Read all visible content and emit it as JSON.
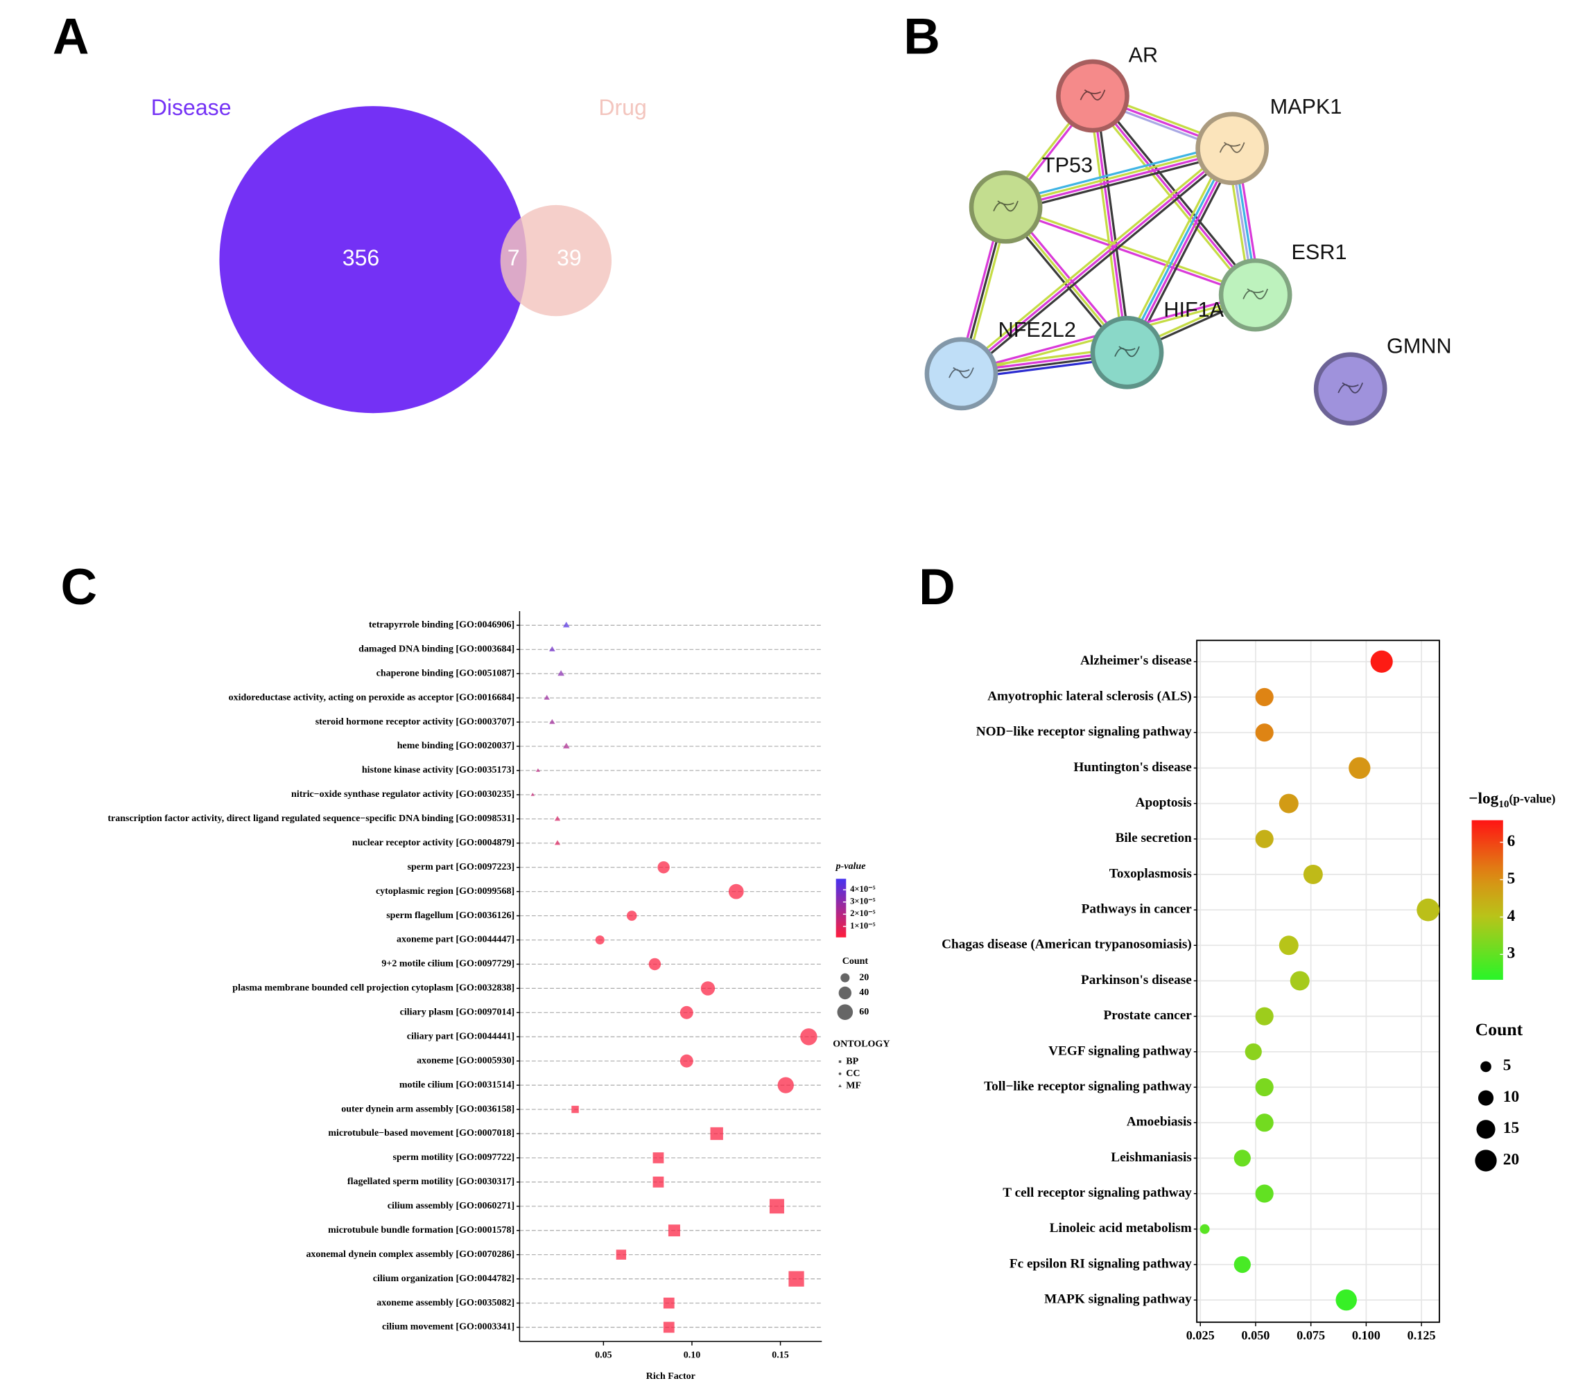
{
  "chart_data": [
    {
      "type": "venn",
      "label": "A",
      "sets": [
        {
          "name": "Disease",
          "color": "#7431f5"
        },
        {
          "name": "Drug",
          "color": "#f3c5be"
        }
      ],
      "values": [
        356,
        7,
        39
      ]
    },
    {
      "type": "network",
      "label": "B",
      "nodes": [
        {
          "name": "AR",
          "color": "#f58a8a"
        },
        {
          "name": "MAPK1",
          "color": "#fbe4bb"
        },
        {
          "name": "TP53",
          "color": "#c3dd8f"
        },
        {
          "name": "ESR1",
          "color": "#bdf2bd"
        },
        {
          "name": "HIF1A",
          "color": "#8ad8c8"
        },
        {
          "name": "NFE2L2",
          "color": "#bfdef7"
        },
        {
          "name": "GMNN",
          "color": "#9f92dc"
        }
      ]
    },
    {
      "type": "dot",
      "label": "C",
      "xlabel": "Rich Factor",
      "categories": [
        "tetrapyrrole binding [GO:0046906]",
        "damaged DNA binding [GO:0003684]",
        "chaperone binding [GO:0051087]",
        "oxidoreductase activity, acting on peroxide as acceptor [GO:0016684]",
        "steroid hormone receptor activity [GO:0003707]",
        "heme binding [GO:0020037]",
        "histone kinase activity [GO:0035173]",
        "nitric−oxide synthase regulator activity [GO:0030235]",
        "transcription factor activity, direct ligand regulated sequence−specific DNA binding [GO:0098531]",
        "nuclear receptor activity [GO:0004879]",
        "sperm part [GO:0097223]",
        "cytoplasmic region [GO:0099568]",
        "sperm flagellum [GO:0036126]",
        "axoneme part [GO:0044447]",
        "9+2 motile cilium [GO:0097729]",
        "plasma membrane bounded cell projection cytoplasm [GO:0032838]",
        "ciliary plasm [GO:0097014]",
        "ciliary part [GO:0044441]",
        "axoneme [GO:0005930]",
        "motile cilium [GO:0031514]",
        "outer dynein arm assembly [GO:0036158]",
        "microtubule−based movement [GO:0007018]",
        "sperm motility [GO:0097722]",
        "flagellated sperm motility [GO:0030317]",
        "cilium assembly [GO:0060271]",
        "microtubule bundle formation [GO:0001578]",
        "axonemal dynein complex assembly [GO:0070286]",
        "cilium organization [GO:0044782]",
        "axoneme assembly [GO:0035082]",
        "cilium movement [GO:0003341]"
      ],
      "values": [
        0.029,
        0.021,
        0.026,
        0.018,
        0.021,
        0.029,
        0.013,
        0.01,
        0.024,
        0.024,
        0.084,
        0.125,
        0.066,
        0.048,
        0.079,
        0.109,
        0.097,
        0.166,
        0.097,
        0.153,
        0.034,
        0.114,
        0.081,
        0.081,
        0.148,
        0.09,
        0.06,
        0.159,
        0.087,
        0.087
      ],
      "counts": [
        12,
        10,
        12,
        9,
        9,
        12,
        5,
        4,
        9,
        9,
        36,
        56,
        25,
        20,
        36,
        49,
        42,
        70,
        42,
        64,
        16,
        49,
        36,
        36,
        64,
        42,
        30,
        72,
        36,
        36
      ],
      "pvalues": [
        4.5e-05,
        3.8e-05,
        3.2e-05,
        2.7e-05,
        2.6e-05,
        2.3e-05,
        1.9e-05,
        1.6e-05,
        1.2e-05,
        1e-05,
        2e-06,
        2e-06,
        2e-06,
        2e-06,
        2e-06,
        2e-06,
        2e-06,
        2e-06,
        2e-06,
        2e-06,
        2e-06,
        2e-06,
        2e-06,
        2e-06,
        2e-06,
        2e-06,
        2e-06,
        2e-06,
        2e-06,
        2e-06
      ],
      "ontology": [
        "MF",
        "MF",
        "MF",
        "MF",
        "MF",
        "MF",
        "MF",
        "MF",
        "MF",
        "MF",
        "CC",
        "CC",
        "CC",
        "CC",
        "CC",
        "CC",
        "CC",
        "CC",
        "CC",
        "CC",
        "BP",
        "BP",
        "BP",
        "BP",
        "BP",
        "BP",
        "BP",
        "BP",
        "BP",
        "BP"
      ],
      "xlim": [
        0.0026,
        0.1734
      ],
      "xticks": [
        0.05,
        {
          "value": 0.1,
          "label": "0.10"
        },
        0.15
      ],
      "color_title": "p-value",
      "color_lim": [
        1e-06,
        4.9e-05
      ],
      "color_ticks": [
        {
          "value": 4e-05,
          "label": "4×10⁻⁵"
        },
        {
          "value": 3e-05,
          "label": "3×10⁻⁵"
        },
        {
          "value": 2e-05,
          "label": "2×10⁻⁵"
        },
        {
          "value": 1e-05,
          "label": "1×10⁻⁵"
        }
      ],
      "size_title": "Count",
      "size_ticks": [
        20,
        40,
        60
      ],
      "shape_title": "ONTOLOGY",
      "shape_levels": [
        "BP",
        "CC",
        "MF"
      ],
      "shapes": [
        "square",
        "circle",
        "triangle"
      ],
      "grid": "dashed"
    },
    {
      "type": "dot",
      "label": "D",
      "categories": [
        "Alzheimer's disease",
        "Amyotrophic lateral sclerosis (ALS)",
        "NOD−like receptor signaling pathway",
        "Huntington's disease",
        "Apoptosis",
        "Bile secretion",
        "Toxoplasmosis",
        "Pathways in cancer",
        "Chagas disease (American trypanosomiasis)",
        "Parkinson's disease",
        "Prostate cancer",
        "VEGF signaling pathway",
        "Toll−like receptor signaling pathway",
        "Amoebiasis",
        "Leishmaniasis",
        "T cell receptor signaling pathway",
        "Linoleic acid metabolism",
        "Fc epsilon RI signaling pathway",
        "MAPK signaling pathway"
      ],
      "values": [
        0.107,
        0.054,
        0.054,
        0.097,
        0.065,
        0.054,
        0.076,
        0.128,
        0.065,
        0.07,
        0.054,
        0.049,
        0.054,
        0.054,
        0.044,
        0.054,
        0.027,
        0.044,
        0.091
      ],
      "counts": [
        21,
        14,
        14,
        20,
        16,
        14,
        16,
        22,
        16,
        16,
        14,
        12,
        14,
        14,
        12,
        14,
        4,
        12,
        19
      ],
      "neglog10p": [
        6.5,
        5.2,
        5.2,
        4.9,
        4.8,
        4.4,
        4.2,
        4.1,
        4.0,
        3.8,
        3.7,
        3.5,
        3.3,
        3.2,
        3.1,
        3.0,
        2.9,
        2.7,
        2.5
      ],
      "xlim": [
        0.0234,
        0.1331
      ],
      "xticks": [
        0.025,
        {
          "value": 0.05,
          "label": "0.050"
        },
        0.075,
        {
          "value": 0.1,
          "label": "0.100"
        },
        0.125
      ],
      "color_title": [
        "−log",
        "10",
        "(p-value)"
      ],
      "color_lim": [
        2.32,
        6.59
      ],
      "color_ticks": [
        6,
        5,
        4,
        3
      ],
      "size_title": "Count",
      "size_ticks": [
        5,
        10,
        15,
        20
      ],
      "grid": "solid"
    }
  ]
}
